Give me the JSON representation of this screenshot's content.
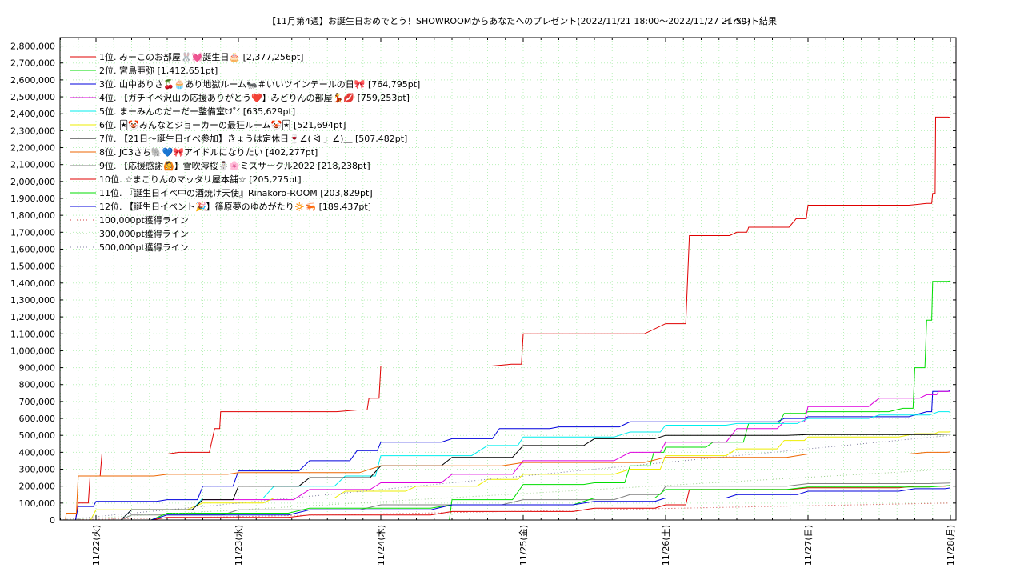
{
  "chart_data": {
    "type": "line",
    "title": "【11月第4週】お誕生日おめでとう！SHOWROOMからあなたへのプレゼント(2022/11/21 18:00～2022/11/27 21:59)",
    "subtitle": "イベント結果",
    "xlabel": "",
    "ylabel": "",
    "x_ticks": [
      "11/22(火)",
      "11/23(水)",
      "11/24(木)",
      "11/25(金)",
      "11/26(土)",
      "11/27(日)",
      "11/28(月)"
    ],
    "x_range": [
      "2022-11-21 18:00",
      "2022-11-28 00:00"
    ],
    "ylim": [
      0,
      2850000
    ],
    "y_ticks": [
      "0",
      "100,000",
      "200,000",
      "300,000",
      "400,000",
      "500,000",
      "600,000",
      "700,000",
      "800,000",
      "900,000",
      "1,000,000",
      "1,100,000",
      "1,200,000",
      "1,300,000",
      "1,400,000",
      "1,500,000",
      "1,600,000",
      "1,700,000",
      "1,800,000",
      "1,900,000",
      "2,000,000",
      "2,100,000",
      "2,200,000",
      "2,300,000",
      "2,400,000",
      "2,500,000",
      "2,600,000",
      "2,700,000",
      "2,800,000"
    ],
    "grid": true,
    "legend_position": "top-left",
    "series": [
      {
        "name": "1位. みーこのお部屋🐰💓誕生日🎂 [2,377,256pt]",
        "color": "#e00000",
        "points": [
          [
            "2022-11-21 18:00",
            0
          ],
          [
            "2022-11-21 21:00",
            100000
          ],
          [
            "2022-11-21 23:00",
            260000
          ],
          [
            "2022-11-22 01:00",
            390000
          ],
          [
            "2022-11-22 14:00",
            400000
          ],
          [
            "2022-11-22 20:00",
            540000
          ],
          [
            "2022-11-22 21:00",
            640000
          ],
          [
            "2022-11-23 20:00",
            650000
          ],
          [
            "2022-11-23 22:00",
            720000
          ],
          [
            "2022-11-24 00:00",
            910000
          ],
          [
            "2022-11-24 22:00",
            920000
          ],
          [
            "2022-11-25 00:00",
            1100000
          ],
          [
            "2022-11-26 00:00",
            1160000
          ],
          [
            "2022-11-26 04:00",
            1680000
          ],
          [
            "2022-11-26 12:00",
            1700000
          ],
          [
            "2022-11-26 14:00",
            1730000
          ],
          [
            "2022-11-26 22:00",
            1780000
          ],
          [
            "2022-11-27 00:00",
            1860000
          ],
          [
            "2022-11-27 20:00",
            1870000
          ],
          [
            "2022-11-27 21:00",
            1930000
          ],
          [
            "2022-11-27 21:30",
            2380000
          ],
          [
            "2022-11-28 00:00",
            2377256
          ]
        ]
      },
      {
        "name": "2位. 宮島亜弥 [1,412,651pt]",
        "color": "#00dd00",
        "points": [
          [
            "2022-11-24 09:00",
            0
          ],
          [
            "2022-11-24 12:00",
            120000
          ],
          [
            "2022-11-25 00:00",
            210000
          ],
          [
            "2022-11-25 12:00",
            220000
          ],
          [
            "2022-11-25 18:00",
            320000
          ],
          [
            "2022-11-25 22:00",
            400000
          ],
          [
            "2022-11-26 00:00",
            430000
          ],
          [
            "2022-11-26 08:00",
            460000
          ],
          [
            "2022-11-26 14:00",
            570000
          ],
          [
            "2022-11-26 20:00",
            630000
          ],
          [
            "2022-11-27 00:00",
            640000
          ],
          [
            "2022-11-27 16:00",
            660000
          ],
          [
            "2022-11-27 18:00",
            900000
          ],
          [
            "2022-11-27 20:00",
            1180000
          ],
          [
            "2022-11-27 21:00",
            1410000
          ],
          [
            "2022-11-28 00:00",
            1412651
          ]
        ]
      },
      {
        "name": "3位. 山中ありさ🍒🧁あり地獄ルーム🐜＃いいツインテールの日🎀 [764,795pt]",
        "color": "#0000dd",
        "points": [
          [
            "2022-11-21 18:00",
            0
          ],
          [
            "2022-11-21 21:00",
            80000
          ],
          [
            "2022-11-22 00:00",
            110000
          ],
          [
            "2022-11-22 12:00",
            120000
          ],
          [
            "2022-11-22 18:00",
            200000
          ],
          [
            "2022-11-23 00:00",
            290000
          ],
          [
            "2022-11-23 12:00",
            350000
          ],
          [
            "2022-11-23 20:00",
            410000
          ],
          [
            "2022-11-24 00:00",
            460000
          ],
          [
            "2022-11-24 12:00",
            480000
          ],
          [
            "2022-11-24 20:00",
            540000
          ],
          [
            "2022-11-25 06:00",
            550000
          ],
          [
            "2022-11-25 18:00",
            580000
          ],
          [
            "2022-11-26 12:00",
            580000
          ],
          [
            "2022-11-26 20:00",
            600000
          ],
          [
            "2022-11-27 00:00",
            610000
          ],
          [
            "2022-11-27 20:00",
            640000
          ],
          [
            "2022-11-27 21:00",
            760000
          ],
          [
            "2022-11-28 00:00",
            764795
          ]
        ]
      },
      {
        "name": "4位. 【ガチイベ沢山の応援ありがとう❤️】みどりんの部屋💃💋 [759,253pt]",
        "color": "#dd00dd",
        "points": [
          [
            "2022-11-21 18:00",
            0
          ],
          [
            "2022-11-22 06:00",
            60000
          ],
          [
            "2022-11-22 18:00",
            120000
          ],
          [
            "2022-11-23 12:00",
            180000
          ],
          [
            "2022-11-24 00:00",
            220000
          ],
          [
            "2022-11-24 12:00",
            270000
          ],
          [
            "2022-11-25 00:00",
            350000
          ],
          [
            "2022-11-25 18:00",
            400000
          ],
          [
            "2022-11-26 00:00",
            460000
          ],
          [
            "2022-11-26 12:00",
            540000
          ],
          [
            "2022-11-26 20:00",
            580000
          ],
          [
            "2022-11-27 00:00",
            670000
          ],
          [
            "2022-11-27 12:00",
            720000
          ],
          [
            "2022-11-27 20:00",
            740000
          ],
          [
            "2022-11-27 22:00",
            760000
          ],
          [
            "2022-11-28 00:00",
            759253
          ]
        ]
      },
      {
        "name": "5位. まーみんのだーだー整備室ᗢ˚ᐟ [635,629pt]",
        "color": "#00eeee",
        "points": [
          [
            "2022-11-21 18:00",
            0
          ],
          [
            "2022-11-22 06:00",
            60000
          ],
          [
            "2022-11-22 18:00",
            130000
          ],
          [
            "2022-11-23 06:00",
            200000
          ],
          [
            "2022-11-23 18:00",
            260000
          ],
          [
            "2022-11-24 00:00",
            380000
          ],
          [
            "2022-11-24 18:00",
            440000
          ],
          [
            "2022-11-25 00:00",
            490000
          ],
          [
            "2022-11-25 18:00",
            520000
          ],
          [
            "2022-11-26 00:00",
            560000
          ],
          [
            "2022-11-26 12:00",
            570000
          ],
          [
            "2022-11-27 00:00",
            600000
          ],
          [
            "2022-11-27 12:00",
            620000
          ],
          [
            "2022-11-27 22:00",
            640000
          ],
          [
            "2022-11-28 00:00",
            635629
          ]
        ]
      },
      {
        "name": "6位. 🃏🤡みんなとジョーカーの最狂ルーム🤡🃏 [521,694pt]",
        "color": "#eeee00",
        "points": [
          [
            "2022-11-21 18:00",
            0
          ],
          [
            "2022-11-22 00:00",
            60000
          ],
          [
            "2022-11-22 18:00",
            100000
          ],
          [
            "2022-11-23 06:00",
            130000
          ],
          [
            "2022-11-23 18:00",
            170000
          ],
          [
            "2022-11-24 06:00",
            200000
          ],
          [
            "2022-11-24 18:00",
            240000
          ],
          [
            "2022-11-25 00:00",
            270000
          ],
          [
            "2022-11-25 18:00",
            300000
          ],
          [
            "2022-11-26 00:00",
            380000
          ],
          [
            "2022-11-26 12:00",
            420000
          ],
          [
            "2022-11-26 20:00",
            470000
          ],
          [
            "2022-11-27 00:00",
            490000
          ],
          [
            "2022-11-27 18:00",
            510000
          ],
          [
            "2022-11-27 22:00",
            520000
          ],
          [
            "2022-11-28 00:00",
            521694
          ]
        ]
      },
      {
        "name": "7位. 【21日〜誕生日イベ参加】きょうは定休日🍷∠( ᐛ 」∠)＿ [507,482pt]",
        "color": "#000000",
        "points": [
          [
            "2022-11-21 18:00",
            0
          ],
          [
            "2022-11-22 06:00",
            60000
          ],
          [
            "2022-11-22 18:00",
            120000
          ],
          [
            "2022-11-23 00:00",
            200000
          ],
          [
            "2022-11-23 12:00",
            250000
          ],
          [
            "2022-11-24 00:00",
            320000
          ],
          [
            "2022-11-24 12:00",
            370000
          ],
          [
            "2022-11-25 00:00",
            440000
          ],
          [
            "2022-11-25 12:00",
            480000
          ],
          [
            "2022-11-26 00:00",
            500000
          ],
          [
            "2022-11-27 00:00",
            505000
          ],
          [
            "2022-11-28 00:00",
            507482
          ]
        ]
      },
      {
        "name": "8位. JC3さち🐘💙🎀アイドルになりたい [402,277pt]",
        "color": "#ee6600",
        "points": [
          [
            "2022-11-21 18:00",
            0
          ],
          [
            "2022-11-21 19:00",
            40000
          ],
          [
            "2022-11-21 21:00",
            260000
          ],
          [
            "2022-11-22 12:00",
            270000
          ],
          [
            "2022-11-23 00:00",
            280000
          ],
          [
            "2022-11-24 00:00",
            320000
          ],
          [
            "2022-11-25 00:00",
            340000
          ],
          [
            "2022-11-26 00:00",
            370000
          ],
          [
            "2022-11-27 00:00",
            390000
          ],
          [
            "2022-11-27 20:00",
            400000
          ],
          [
            "2022-11-28 00:00",
            402277
          ]
        ]
      },
      {
        "name": "9位. 【応援感謝🙆】雪吹澪桜⛄🌸ミスサークル2022 [218,238pt]",
        "color": "#808080",
        "points": [
          [
            "2022-11-21 18:00",
            0
          ],
          [
            "2022-11-22 06:00",
            30000
          ],
          [
            "2022-11-23 00:00",
            60000
          ],
          [
            "2022-11-24 00:00",
            90000
          ],
          [
            "2022-11-25 00:00",
            120000
          ],
          [
            "2022-11-25 18:00",
            150000
          ],
          [
            "2022-11-26 00:00",
            200000
          ],
          [
            "2022-11-27 00:00",
            215000
          ],
          [
            "2022-11-28 00:00",
            218238
          ]
        ]
      },
      {
        "name": "10位. ☆まこりんのマッタリ屋本舗☆ [205,275pt]",
        "color": "#e00000",
        "points": [
          [
            "2022-11-21 18:00",
            0
          ],
          [
            "2022-11-22 12:00",
            15000
          ],
          [
            "2022-11-23 12:00",
            30000
          ],
          [
            "2022-11-24 12:00",
            50000
          ],
          [
            "2022-11-25 12:00",
            70000
          ],
          [
            "2022-11-26 00:00",
            90000
          ],
          [
            "2022-11-26 04:00",
            180000
          ],
          [
            "2022-11-27 00:00",
            190000
          ],
          [
            "2022-11-27 18:00",
            200000
          ],
          [
            "2022-11-28 00:00",
            205275
          ]
        ]
      },
      {
        "name": "11位. 『誕生日イベ中の酒焼け天使』Rinakoro-ROOM [203,829pt]",
        "color": "#00dd00",
        "points": [
          [
            "2022-11-21 18:00",
            0
          ],
          [
            "2022-11-22 12:00",
            40000
          ],
          [
            "2022-11-23 12:00",
            70000
          ],
          [
            "2022-11-24 12:00",
            90000
          ],
          [
            "2022-11-25 12:00",
            130000
          ],
          [
            "2022-11-26 00:00",
            180000
          ],
          [
            "2022-11-27 00:00",
            195000
          ],
          [
            "2022-11-28 00:00",
            203829
          ]
        ]
      },
      {
        "name": "12位. 【誕生日イベント🎉】篠原夢のゆめがたり🔅🦐 [189,437pt]",
        "color": "#0000dd",
        "points": [
          [
            "2022-11-21 18:00",
            0
          ],
          [
            "2022-11-22 12:00",
            30000
          ],
          [
            "2022-11-23 12:00",
            60000
          ],
          [
            "2022-11-24 12:00",
            90000
          ],
          [
            "2022-11-25 12:00",
            110000
          ],
          [
            "2022-11-26 00:00",
            130000
          ],
          [
            "2022-11-26 12:00",
            150000
          ],
          [
            "2022-11-27 00:00",
            170000
          ],
          [
            "2022-11-27 18:00",
            185000
          ],
          [
            "2022-11-28 00:00",
            189437
          ]
        ]
      },
      {
        "name": "100,000pt獲得ライン",
        "color": "#d04040",
        "dotted": true,
        "points": [
          [
            "2022-11-21 18:00",
            0
          ],
          [
            "2022-11-28 00:00",
            100000
          ]
        ]
      },
      {
        "name": "300,000pt獲得ライン",
        "color": "#a0d090",
        "dotted": true,
        "points": [
          [
            "2022-11-21 18:00",
            0
          ],
          [
            "2022-11-28 00:00",
            300000
          ]
        ]
      },
      {
        "name": "500,000pt獲得ライン",
        "color": "#8080a0",
        "dotted": true,
        "points": [
          [
            "2022-11-21 18:00",
            0
          ],
          [
            "2022-11-28 00:00",
            500000
          ]
        ]
      }
    ]
  }
}
